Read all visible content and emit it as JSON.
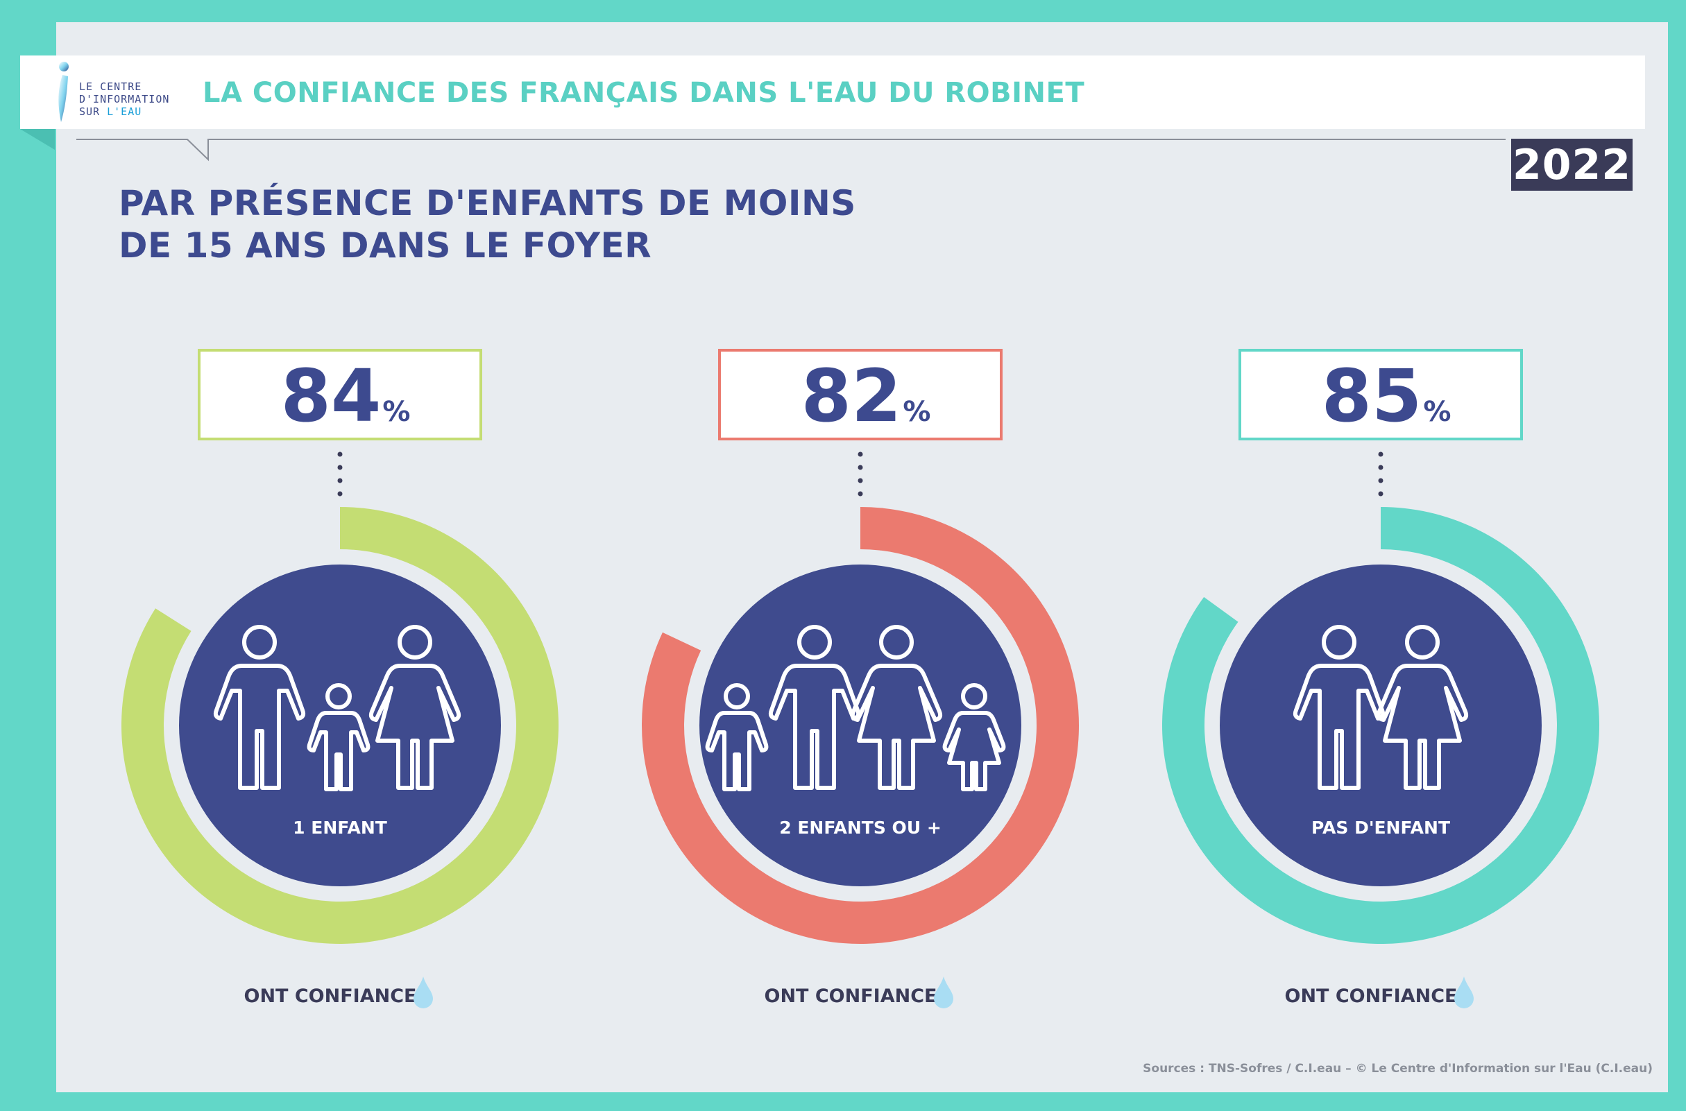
{
  "header": {
    "logo_lines": [
      "LE CENTRE",
      "D'INFORMATION",
      "SUR",
      "L'EAU"
    ],
    "title": "LA CONFIANCE DES FRANÇAIS DANS L'EAU DU ROBINET",
    "year": "2022"
  },
  "subtitle": [
    "PAR PRÉSENCE D'ENFANTS DE MOINS",
    "DE 15 ANS DANS LE FOYER"
  ],
  "footer": {
    "sources": "Sources : TNS-Sofres / C.I.eau – © Le Centre d'Information sur l'Eau (C.I.eau)"
  },
  "colors": {
    "navy": "#3f4b8e",
    "green": "#c4dd73",
    "coral": "#eb7a6f",
    "teal": "#62d7c8",
    "drop": "#a9ddf3"
  },
  "chart_data": {
    "type": "pie",
    "unit": "%",
    "series_label": "ONT CONFIANCE",
    "items": [
      {
        "label": "1 ENFANT",
        "value": 84,
        "value_text": "84",
        "color": "#c4dd73",
        "icon": "family-one-child-icon"
      },
      {
        "label": "2 ENFANTS OU +",
        "value": 82,
        "value_text": "82",
        "color": "#eb7a6f",
        "icon": "family-two-children-icon"
      },
      {
        "label": "PAS D'ENFANT",
        "value": 85,
        "value_text": "85",
        "color": "#62d7c8",
        "icon": "couple-icon"
      }
    ]
  }
}
